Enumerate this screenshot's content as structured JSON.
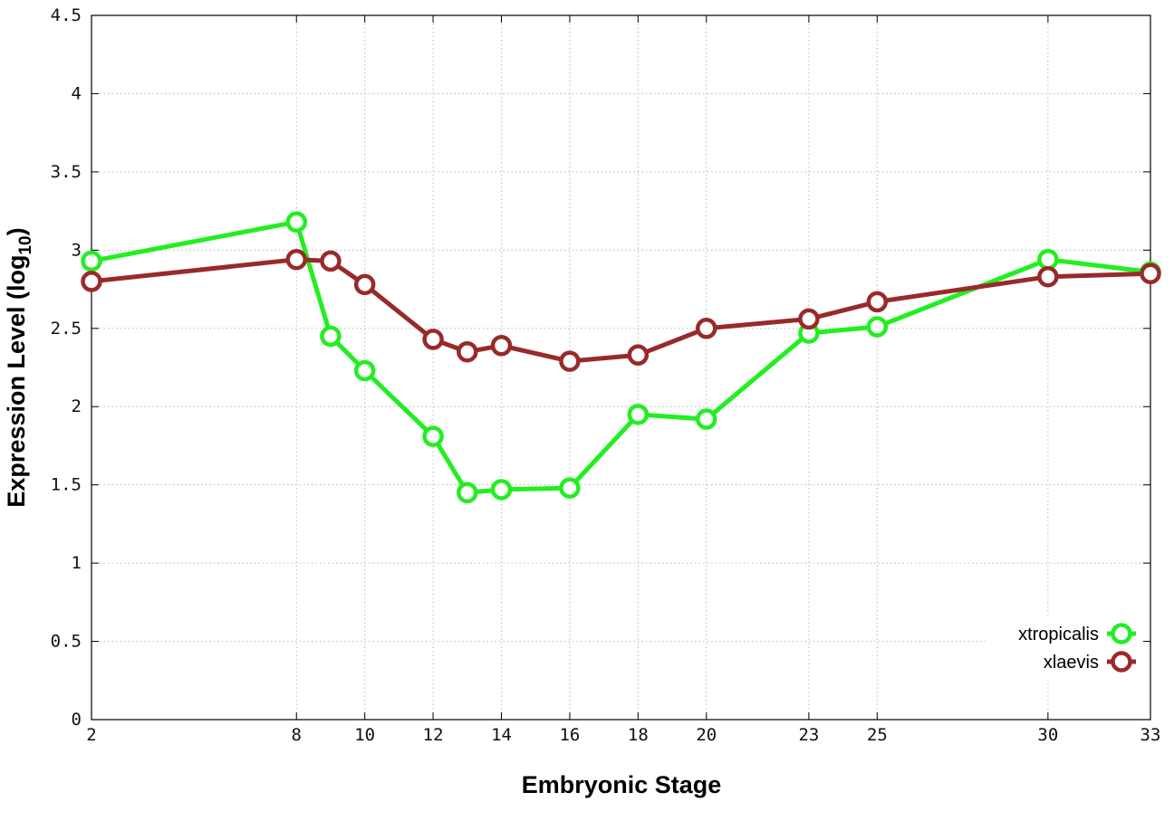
{
  "chart_data": {
    "type": "line",
    "xlabel": "Embryonic Stage",
    "ylabel": {
      "main": "Expression Level (log",
      "sub": "10",
      "end": ")"
    },
    "x": [
      2,
      8,
      9,
      10,
      12,
      13,
      14,
      16,
      18,
      20,
      23,
      25,
      30,
      33
    ],
    "x_ticks": [
      "2",
      "8",
      "10",
      "12",
      "14",
      "16",
      "18",
      "20",
      "23",
      "25",
      "30",
      "33"
    ],
    "y_ticks": [
      "0",
      "0.5",
      "1",
      "1.5",
      "2",
      "2.5",
      "3",
      "3.5",
      "4",
      "4.5"
    ],
    "xlim": [
      2,
      33
    ],
    "ylim": [
      0,
      4.5
    ],
    "grid": true,
    "legend_position": "bottom-right",
    "series": [
      {
        "name": "xtropicalis",
        "color": "#22ee22",
        "values": [
          2.93,
          3.18,
          2.45,
          2.23,
          1.81,
          1.45,
          1.47,
          1.48,
          1.95,
          1.92,
          2.47,
          2.51,
          2.94,
          2.86
        ]
      },
      {
        "name": "xlaevis",
        "color": "#992a2a",
        "values": [
          2.8,
          2.94,
          2.93,
          2.78,
          2.43,
          2.35,
          2.39,
          2.29,
          2.33,
          2.5,
          2.56,
          2.67,
          2.83,
          2.85
        ]
      }
    ]
  }
}
